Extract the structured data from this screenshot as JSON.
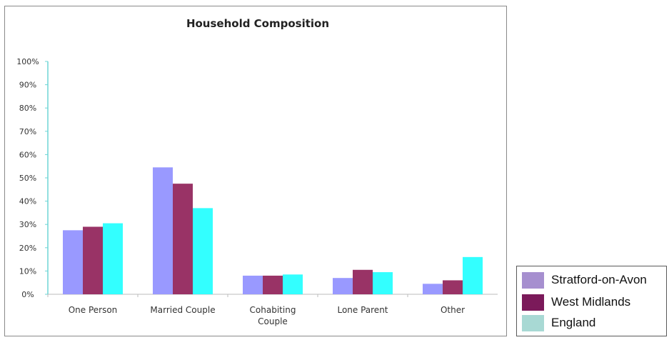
{
  "chart_data": {
    "type": "bar",
    "title": "Household Composition",
    "xlabel": "",
    "ylabel": "",
    "ylim": [
      0,
      100
    ],
    "yticks": [
      "0%",
      "10%",
      "20%",
      "30%",
      "40%",
      "50%",
      "60%",
      "70%",
      "80%",
      "90%",
      "100%"
    ],
    "categories": [
      [
        "One Person"
      ],
      [
        "Married Couple"
      ],
      [
        "Cohabiting",
        "Couple"
      ],
      [
        "Lone Parent"
      ],
      [
        "Other"
      ]
    ],
    "series": [
      {
        "name": "Stratford-on-Avon",
        "color": "#9999ff",
        "values": [
          27.5,
          54.5,
          8,
          7,
          4.5
        ]
      },
      {
        "name": "West Midlands",
        "color": "#993366",
        "values": [
          29,
          47.5,
          8,
          10.5,
          6
        ]
      },
      {
        "name": "England",
        "color": "#33ffff",
        "values": [
          30.5,
          37,
          8.5,
          9.5,
          16
        ]
      }
    ],
    "grid": false,
    "legend_placement": "bottom-right"
  },
  "legend": [
    {
      "label": "Stratford-on-Avon",
      "color": "#a68fcf"
    },
    {
      "label": "West Midlands",
      "color": "#7b1a5a"
    },
    {
      "label": "England",
      "color": "#a8d9d4"
    }
  ]
}
